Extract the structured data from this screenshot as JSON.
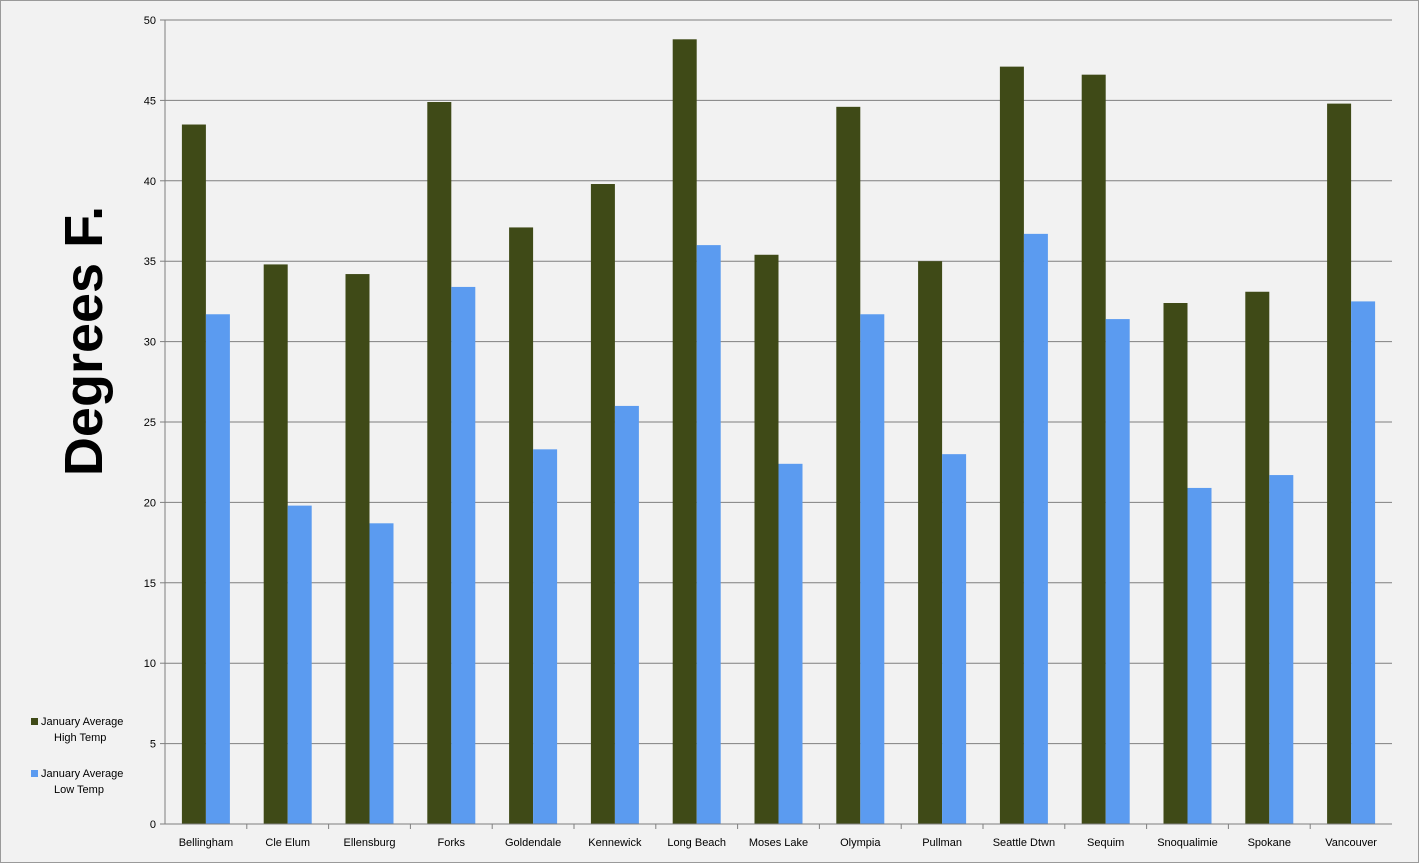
{
  "chart_data": {
    "type": "bar",
    "title": "",
    "xlabel": "",
    "ylabel": "Degrees F.",
    "ylim": [
      0,
      50
    ],
    "yticks": [
      0,
      5,
      10,
      15,
      20,
      25,
      30,
      35,
      40,
      45,
      50
    ],
    "grid": true,
    "legend_position": "bottom-left",
    "categories": [
      "Bellingham",
      "Cle Elum",
      "Ellensburg",
      "Forks",
      "Goldendale",
      "Kennewick",
      "Long Beach",
      "Moses Lake",
      "Olympia",
      "Pullman",
      "Seattle Dtwn",
      "Sequim",
      "Snoqualimie",
      "Spokane",
      "Vancouver"
    ],
    "series": [
      {
        "name": "January Average High Temp",
        "legend_lines": [
          "January Average",
          "High Temp"
        ],
        "color": "#3f4a17",
        "values": [
          43.5,
          34.8,
          34.2,
          44.9,
          37.1,
          39.8,
          48.8,
          35.4,
          44.6,
          35.0,
          47.1,
          46.6,
          32.4,
          33.1,
          44.8
        ]
      },
      {
        "name": "January Average Low Temp",
        "legend_lines": [
          "January Average",
          "Low Temp"
        ],
        "color": "#5b9bf0",
        "values": [
          31.7,
          19.8,
          18.7,
          33.4,
          23.3,
          26.0,
          36.0,
          22.4,
          31.7,
          23.0,
          36.7,
          31.4,
          20.9,
          21.7,
          32.5
        ]
      }
    ]
  }
}
